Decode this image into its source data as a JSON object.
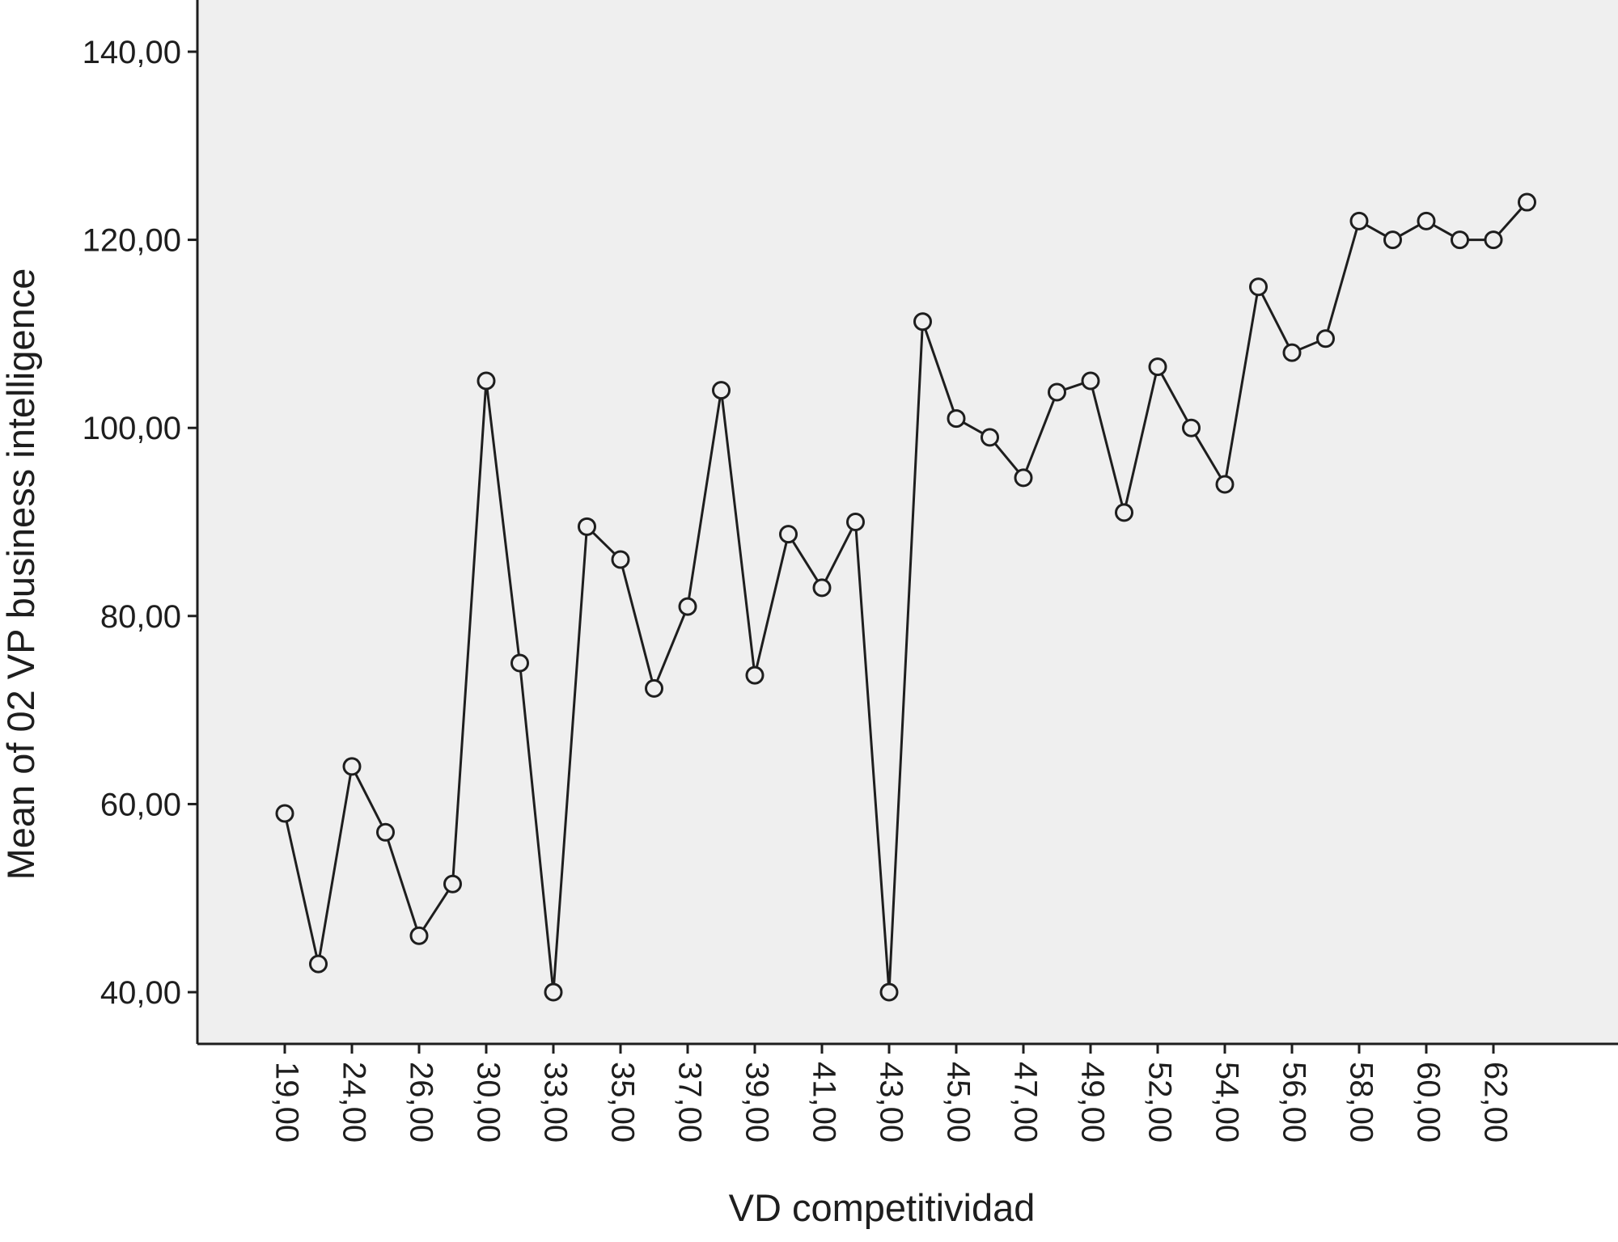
{
  "chart_data": {
    "type": "line",
    "title": "",
    "xlabel": "VD competitividad",
    "ylabel": "Mean of 02 VP business intelligence",
    "ylim": [
      34.5,
      145.5
    ],
    "yticks": [
      "40,00",
      "60,00",
      "80,00",
      "100,00",
      "120,00",
      "140,00"
    ],
    "ytick_values": [
      40,
      60,
      80,
      100,
      120,
      140
    ],
    "xtick_labels": [
      "19,00",
      "24,00",
      "26,00",
      "30,00",
      "33,00",
      "35,00",
      "37,00",
      "39,00",
      "41,00",
      "43,00",
      "45,00",
      "47,00",
      "49,00",
      "52,00",
      "54,00",
      "56,00",
      "58,00",
      "60,00",
      "62,00"
    ],
    "grid": false,
    "legend": "none",
    "marker": "open-circle",
    "colors": {
      "background": "#efefef",
      "line": "#1e1e1e",
      "frame": "#1e1e1e"
    },
    "series": [
      {
        "values": [
          59,
          43,
          64,
          57,
          46,
          51.5,
          105,
          75,
          40,
          89.5,
          86,
          72.3,
          81,
          104,
          73.7,
          88.7,
          83,
          90,
          40,
          111.3,
          101,
          99,
          94.7,
          103.8,
          105,
          91,
          106.5,
          100,
          94,
          115,
          108,
          109.5,
          122,
          120,
          122,
          120,
          120,
          124
        ]
      }
    ]
  }
}
